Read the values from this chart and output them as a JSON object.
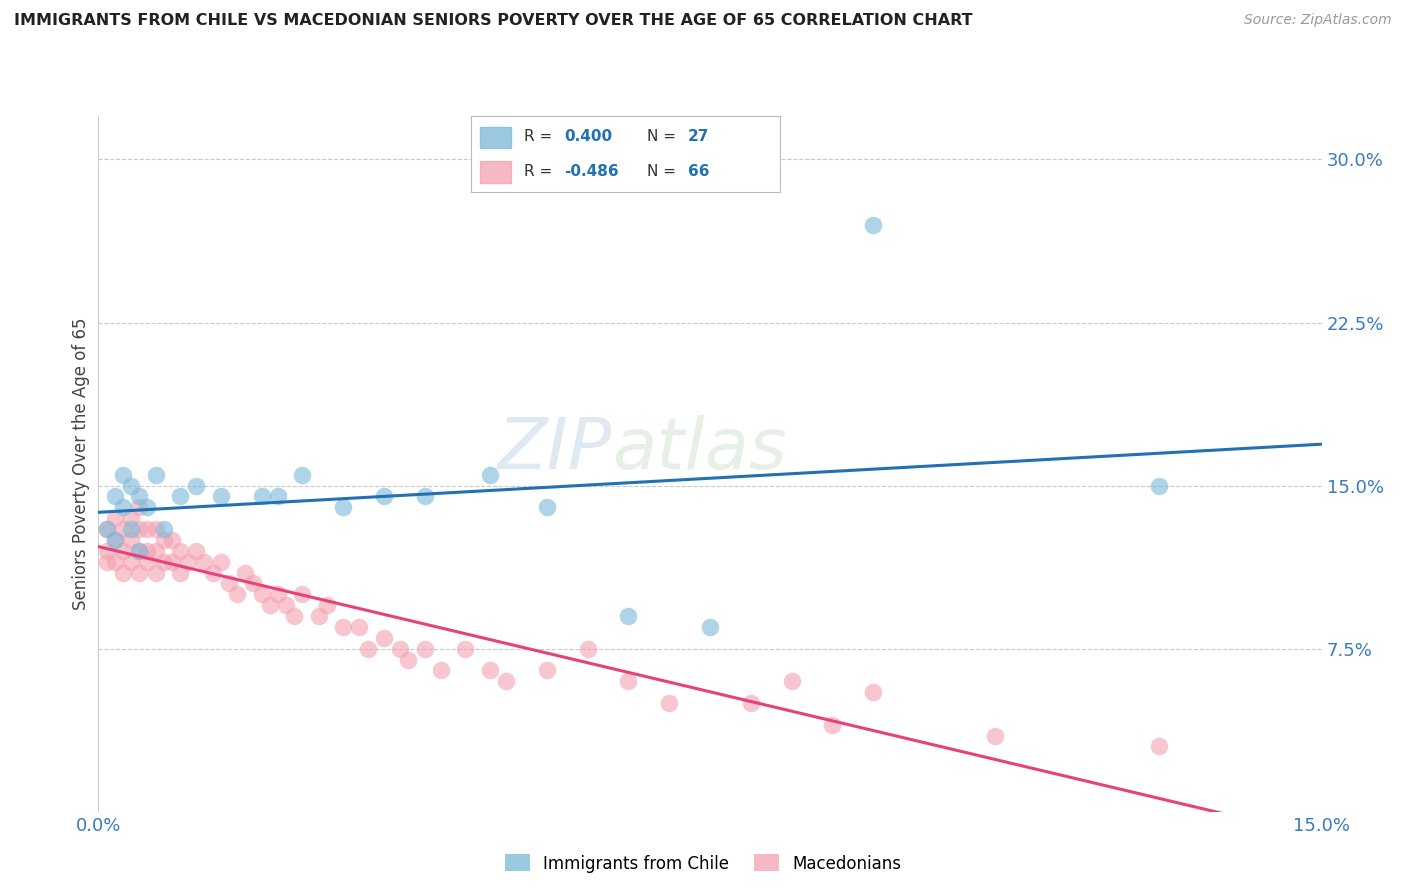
{
  "title": "IMMIGRANTS FROM CHILE VS MACEDONIAN SENIORS POVERTY OVER THE AGE OF 65 CORRELATION CHART",
  "source": "Source: ZipAtlas.com",
  "ylabel": "Seniors Poverty Over the Age of 65",
  "r1": "0.400",
  "n1": "27",
  "r2": "-0.486",
  "n2": "66",
  "legend_label1": "Immigrants from Chile",
  "legend_label2": "Macedonians",
  "color1": "#7ab8d9",
  "color2": "#f4a0b0",
  "trendline1_color": "#2171b5",
  "trendline2_color": "#e8417a",
  "xlim": [
    0.0,
    0.15
  ],
  "ylim": [
    0.0,
    0.32
  ],
  "xticks": [
    0.0,
    0.15
  ],
  "xtick_labels": [
    "0.0%",
    "15.0%"
  ],
  "ytick_labels": [
    "7.5%",
    "15.0%",
    "22.5%",
    "30.0%"
  ],
  "ytick_vals": [
    0.075,
    0.15,
    0.225,
    0.3
  ],
  "watermark": "ZIPAtlas",
  "chile_x": [
    0.001,
    0.002,
    0.002,
    0.003,
    0.003,
    0.004,
    0.004,
    0.005,
    0.005,
    0.006,
    0.007,
    0.008,
    0.01,
    0.012,
    0.015,
    0.02,
    0.022,
    0.025,
    0.03,
    0.035,
    0.04,
    0.048,
    0.055,
    0.065,
    0.075,
    0.095,
    0.13
  ],
  "chile_y": [
    0.13,
    0.145,
    0.125,
    0.14,
    0.155,
    0.15,
    0.13,
    0.145,
    0.12,
    0.14,
    0.155,
    0.13,
    0.145,
    0.15,
    0.145,
    0.145,
    0.145,
    0.155,
    0.14,
    0.145,
    0.145,
    0.155,
    0.14,
    0.09,
    0.085,
    0.27,
    0.15
  ],
  "mac_x": [
    0.001,
    0.001,
    0.001,
    0.002,
    0.002,
    0.002,
    0.003,
    0.003,
    0.003,
    0.004,
    0.004,
    0.004,
    0.005,
    0.005,
    0.005,
    0.005,
    0.006,
    0.006,
    0.006,
    0.007,
    0.007,
    0.007,
    0.008,
    0.008,
    0.009,
    0.009,
    0.01,
    0.01,
    0.011,
    0.012,
    0.013,
    0.014,
    0.015,
    0.016,
    0.017,
    0.018,
    0.019,
    0.02,
    0.021,
    0.022,
    0.023,
    0.024,
    0.025,
    0.027,
    0.028,
    0.03,
    0.032,
    0.033,
    0.035,
    0.037,
    0.038,
    0.04,
    0.042,
    0.045,
    0.048,
    0.05,
    0.055,
    0.06,
    0.065,
    0.07,
    0.08,
    0.085,
    0.09,
    0.095,
    0.11,
    0.13
  ],
  "mac_y": [
    0.13,
    0.12,
    0.115,
    0.135,
    0.125,
    0.115,
    0.13,
    0.12,
    0.11,
    0.135,
    0.125,
    0.115,
    0.14,
    0.13,
    0.12,
    0.11,
    0.13,
    0.12,
    0.115,
    0.13,
    0.12,
    0.11,
    0.125,
    0.115,
    0.125,
    0.115,
    0.12,
    0.11,
    0.115,
    0.12,
    0.115,
    0.11,
    0.115,
    0.105,
    0.1,
    0.11,
    0.105,
    0.1,
    0.095,
    0.1,
    0.095,
    0.09,
    0.1,
    0.09,
    0.095,
    0.085,
    0.085,
    0.075,
    0.08,
    0.075,
    0.07,
    0.075,
    0.065,
    0.075,
    0.065,
    0.06,
    0.065,
    0.075,
    0.06,
    0.05,
    0.05,
    0.06,
    0.04,
    0.055,
    0.035,
    0.03
  ],
  "background_color": "#ffffff",
  "grid_color": "#c8c8c8"
}
